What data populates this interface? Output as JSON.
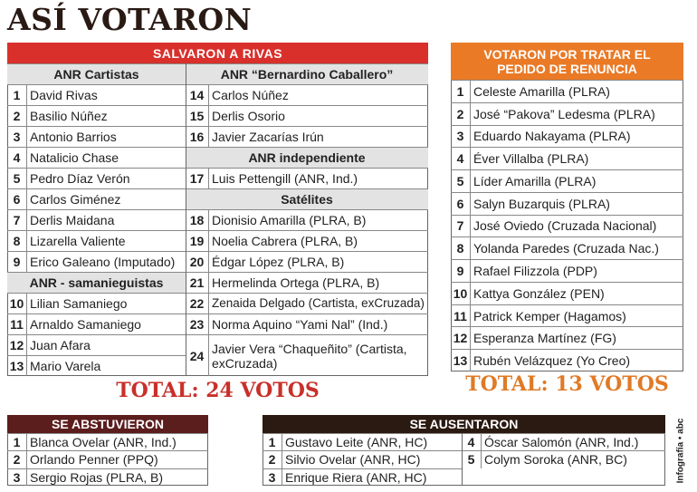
{
  "title": "ASÍ VOTARON",
  "salvaron": {
    "heading": "SALVARON A RIVAS",
    "columns": [
      [
        {
          "subheading": "ANR Cartistas"
        },
        {
          "number": 1,
          "name": "David Rivas"
        },
        {
          "number": 2,
          "name": "Basilio Núñez"
        },
        {
          "number": 3,
          "name": "Antonio Barrios"
        },
        {
          "number": 4,
          "name": "Natalicio Chase"
        },
        {
          "number": 5,
          "name": "Pedro Díaz Verón"
        },
        {
          "number": 6,
          "name": "Carlos Giménez"
        },
        {
          "number": 7,
          "name": "Derlis Maidana"
        },
        {
          "number": 8,
          "name": "Lizarella Valiente"
        },
        {
          "number": 9,
          "name": "Erico Galeano (Imputado)"
        },
        {
          "subheading": "ANR - samanieguistas"
        },
        {
          "number": 10,
          "name": "Lilian Samaniego"
        },
        {
          "number": 11,
          "name": "Arnaldo Samaniego"
        },
        {
          "number": 12,
          "name": "Juan Afara"
        },
        {
          "number": 13,
          "name": "Mario Varela"
        }
      ],
      [
        {
          "subheading": "ANR “Bernardino Caballero”"
        },
        {
          "number": 14,
          "name": "Carlos Núñez"
        },
        {
          "number": 15,
          "name": "Derlis Osorio"
        },
        {
          "number": 16,
          "name": "Javier Zacarías Irún"
        },
        {
          "subheading": "ANR independiente"
        },
        {
          "number": 17,
          "name": "Luis Pettengill (ANR, Ind.)"
        },
        {
          "subheading": "Satélites"
        },
        {
          "number": 18,
          "name": "Dionisio Amarilla (PLRA, B)"
        },
        {
          "number": 19,
          "name": "Noelia Cabrera (PLRA, B)"
        },
        {
          "number": 20,
          "name": "Édgar López (PLRA, B)"
        },
        {
          "number": 21,
          "name": "Hermelinda Ortega (PLRA, B)"
        },
        {
          "number": 22,
          "name": "Zenaida Delgado (Cartista, exCruzada)"
        },
        {
          "number": 23,
          "name": "Norma Aquino “Yami Nal” (Ind.)"
        },
        {
          "number": 24,
          "name": "Javier Vera “Chaqueñito” (Cartista, exCruzada)"
        }
      ]
    ],
    "total": "TOTAL: 24 VOTOS"
  },
  "renuncia": {
    "heading": "VOTARON POR TRATAR EL PEDIDO DE RENUNCIA",
    "rows": [
      {
        "number": 1,
        "name": "Celeste Amarilla (PLRA)"
      },
      {
        "number": 2,
        "name": "José “Pakova” Ledesma (PLRA)"
      },
      {
        "number": 3,
        "name": "Eduardo Nakayama (PLRA)"
      },
      {
        "number": 4,
        "name": "Éver Villalba (PLRA)"
      },
      {
        "number": 5,
        "name": "Líder Amarilla (PLRA)"
      },
      {
        "number": 6,
        "name": "Salyn Buzarquis (PLRA)"
      },
      {
        "number": 7,
        "name": "José Oviedo (Cruzada Nacional)"
      },
      {
        "number": 8,
        "name": "Yolanda Paredes (Cruzada Nac.)"
      },
      {
        "number": 9,
        "name": "Rafael Filizzola (PDP)"
      },
      {
        "number": 10,
        "name": "Kattya González (PEN)"
      },
      {
        "number": 11,
        "name": "Patrick Kemper (Hagamos)"
      },
      {
        "number": 12,
        "name": "Esperanza Martínez (FG)"
      },
      {
        "number": 13,
        "name": "Rubén Velázquez (Yo Creo)"
      }
    ],
    "total": "TOTAL: 13 VOTOS"
  },
  "abstuvieron": {
    "heading": "SE ABSTUVIERON",
    "rows": [
      {
        "number": 1,
        "name": "Blanca Ovelar (ANR, Ind.)"
      },
      {
        "number": 2,
        "name": "Orlando Penner (PPQ)"
      },
      {
        "number": 3,
        "name": "Sergio Rojas (PLRA, B)"
      }
    ]
  },
  "ausentaron": {
    "heading": "SE AUSENTARON",
    "columns": [
      [
        {
          "number": 1,
          "name": "Gustavo Leite (ANR, HC)"
        },
        {
          "number": 2,
          "name": "Silvio Ovelar (ANR, HC)"
        },
        {
          "number": 3,
          "name": "Enrique Riera (ANR, HC)"
        }
      ],
      [
        {
          "number": 4,
          "name": "Óscar Salomón (ANR, Ind.)"
        },
        {
          "number": 5,
          "name": "Colym Soroka (ANR, BC)"
        }
      ]
    ]
  },
  "credit": "Infografía • abc"
}
